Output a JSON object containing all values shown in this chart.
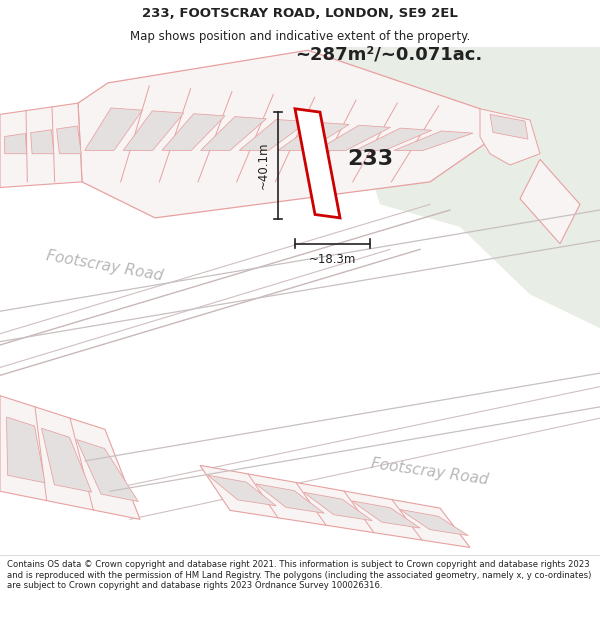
{
  "title_line1": "233, FOOTSCRAY ROAD, LONDON, SE9 2EL",
  "title_line2": "Map shows position and indicative extent of the property.",
  "area_text": "~287m²/~0.071ac.",
  "number_label": "233",
  "dim_height": "~40.1m",
  "dim_width": "~18.3m",
  "road_label1": "Footscray Road",
  "road_label2": "Footscray Road",
  "footer_text": "Contains OS data © Crown copyright and database right 2021. This information is subject to Crown copyright and database rights 2023 and is reproduced with the permission of HM Land Registry. The polygons (including the associated geometry, namely x, y co-ordinates) are subject to Crown copyright and database rights 2023 Ordnance Survey 100026316.",
  "property_line_color": "#cc0000",
  "other_line_color": "#e8a0a0",
  "dim_line_color": "#222222",
  "text_color": "#222222",
  "fig_width": 6.0,
  "fig_height": 6.25
}
